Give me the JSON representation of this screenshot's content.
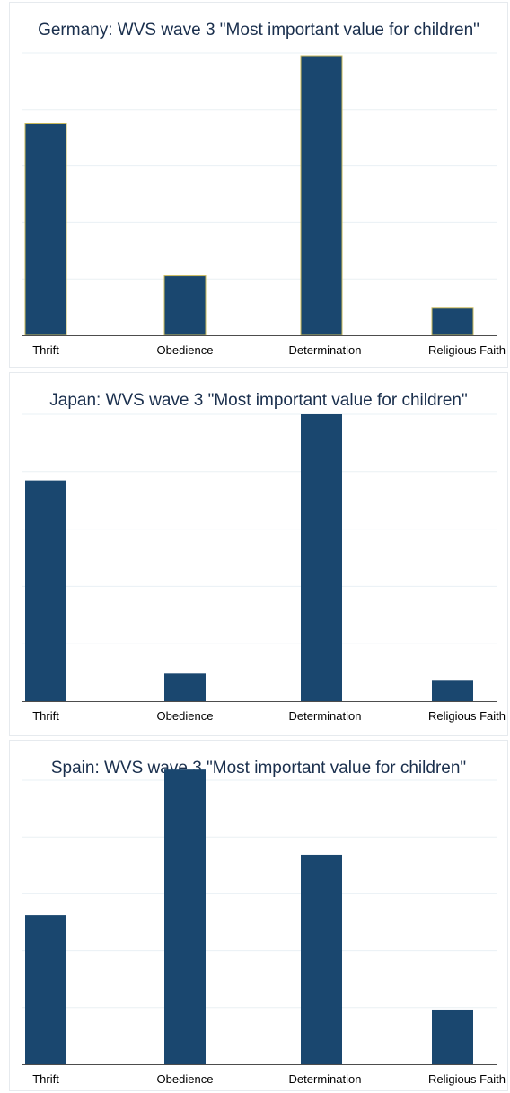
{
  "colors": {
    "bar_fill": "#1a476f",
    "bar_outline_germany": "#c8b85a",
    "grid": "#eaf0f4",
    "axis": "#4d4d4d",
    "title": "#1a2f4d",
    "tick_label": "#000000"
  },
  "chart_data": [
    {
      "type": "bar",
      "title": "Germany: WVS wave 3 \"Most important value for children\"",
      "categories": [
        "Thrift",
        "Obedience",
        "Determination",
        "Religious Faith"
      ],
      "values": [
        39,
        11,
        51.5,
        5
      ],
      "ylim": [
        0,
        52
      ],
      "grid": true,
      "xlabel": "",
      "ylabel": ""
    },
    {
      "type": "bar",
      "title": "Japan: WVS wave 3 \"Most important value for children\"",
      "categories": [
        "Thrift",
        "Obedience",
        "Determination",
        "Religious Faith"
      ],
      "values": [
        40,
        5,
        52,
        3.7
      ],
      "ylim": [
        0,
        52
      ],
      "grid": true,
      "xlabel": "",
      "ylabel": ""
    },
    {
      "type": "bar",
      "title": "Spain: WVS wave 3 \"Most important value for children\"",
      "categories": [
        "Thrift",
        "Obedience",
        "Determination",
        "Religious Faith"
      ],
      "values": [
        21,
        41.5,
        29.5,
        7.6
      ],
      "ylim": [
        0,
        40
      ],
      "grid": true,
      "xlabel": "",
      "ylabel": ""
    }
  ]
}
